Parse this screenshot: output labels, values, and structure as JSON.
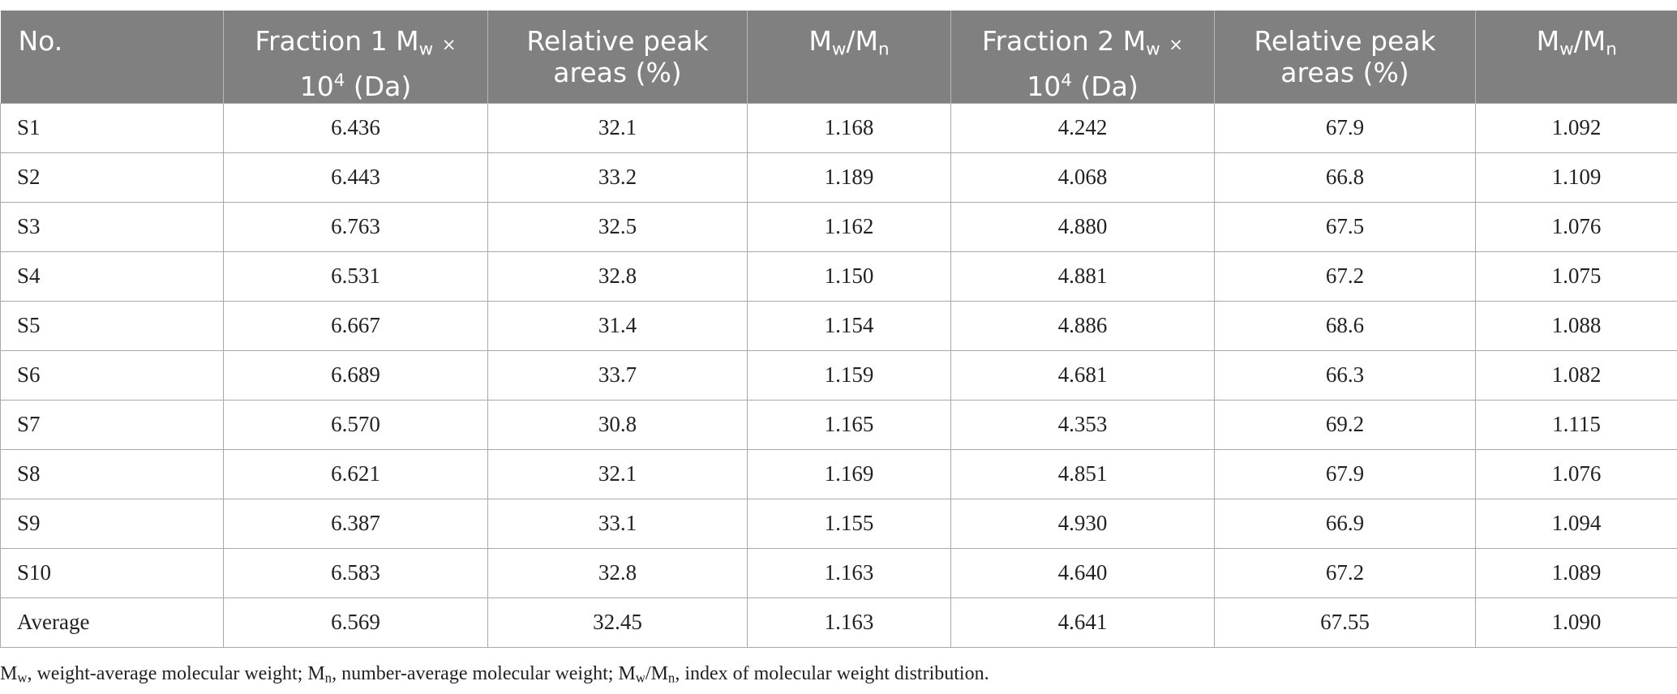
{
  "table": {
    "headers": [
      {
        "text": "No."
      },
      {
        "pre": "Fraction 1 M",
        "sub": "w",
        "times": "×",
        "line2a": "10",
        "sup": "4",
        "line2b": " (Da)"
      },
      {
        "line1": "Relative peak",
        "line2": "areas (%)"
      },
      {
        "m1": "M",
        "s1": "w",
        "slash": "/M",
        "s2": "n"
      },
      {
        "pre": "Fraction 2 M",
        "sub": "w",
        "times": "×",
        "line2a": "10",
        "sup": "4",
        "line2b": " (Da)"
      },
      {
        "line1": "Relative peak",
        "line2": "areas (%)"
      },
      {
        "m1": "M",
        "s1": "w",
        "slash": "/M",
        "s2": "n"
      }
    ],
    "rows": [
      [
        "S1",
        "6.436",
        "32.1",
        "1.168",
        "4.242",
        "67.9",
        "1.092"
      ],
      [
        "S2",
        "6.443",
        "33.2",
        "1.189",
        "4.068",
        "66.8",
        "1.109"
      ],
      [
        "S3",
        "6.763",
        "32.5",
        "1.162",
        "4.880",
        "67.5",
        "1.076"
      ],
      [
        "S4",
        "6.531",
        "32.8",
        "1.150",
        "4.881",
        "67.2",
        "1.075"
      ],
      [
        "S5",
        "6.667",
        "31.4",
        "1.154",
        "4.886",
        "68.6",
        "1.088"
      ],
      [
        "S6",
        "6.689",
        "33.7",
        "1.159",
        "4.681",
        "66.3",
        "1.082"
      ],
      [
        "S7",
        "6.570",
        "30.8",
        "1.165",
        "4.353",
        "69.2",
        "1.115"
      ],
      [
        "S8",
        "6.621",
        "32.1",
        "1.169",
        "4.851",
        "67.9",
        "1.076"
      ],
      [
        "S9",
        "6.387",
        "33.1",
        "1.155",
        "4.930",
        "66.9",
        "1.094"
      ],
      [
        "S10",
        "6.583",
        "32.8",
        "1.163",
        "4.640",
        "67.2",
        "1.089"
      ],
      [
        "Average",
        "6.569",
        "32.45",
        "1.163",
        "4.641",
        "67.55",
        "1.090"
      ]
    ]
  },
  "footnote": {
    "mw_m": "M",
    "mw_sub": "w",
    "mw_text": ", weight-average molecular weight; ",
    "mn_m": "M",
    "mn_sub": "n",
    "mn_text": ", number-average molecular weight; ",
    "r_m1": "M",
    "r_sub1": "w",
    "r_slash": "/M",
    "r_sub2": "n",
    "r_text": ", index of molecular weight distribution."
  }
}
